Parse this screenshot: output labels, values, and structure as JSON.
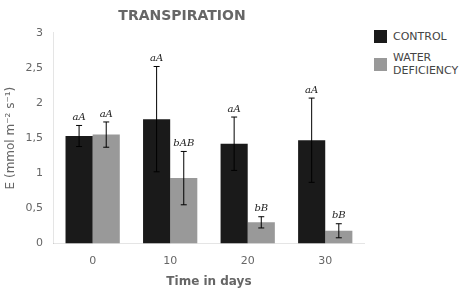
{
  "chart_data": {
    "type": "bar",
    "title": "TRANSPIRATION",
    "xlabel": "Time in days",
    "ylabel": "E (mmol m⁻² s⁻¹)",
    "categories": [
      "0",
      "10",
      "20",
      "30"
    ],
    "series": [
      {
        "name": "CONTROL",
        "color": "#1a1a1a",
        "values": [
          1.53,
          1.77,
          1.42,
          1.47
        ],
        "errors": [
          0.15,
          0.75,
          0.38,
          0.6
        ],
        "annotations": [
          "aA",
          "aA",
          "aA",
          "aA"
        ]
      },
      {
        "name": "WATER\nDEFICIENCY",
        "color": "#999999",
        "values": [
          1.55,
          0.93,
          0.3,
          0.18
        ],
        "errors": [
          0.18,
          0.38,
          0.08,
          0.1
        ],
        "annotations": [
          "aA",
          "bAB",
          "bB",
          "bB"
        ]
      }
    ],
    "ylim": [
      0,
      3
    ],
    "yticks": [
      0,
      {
        "value": 0.5,
        "label": "0,5"
      },
      1,
      {
        "value": 1.5,
        "label": "1,5"
      },
      2,
      {
        "value": 2.5,
        "label": "2,5"
      },
      3
    ],
    "grid": false,
    "legend": "upper right"
  }
}
